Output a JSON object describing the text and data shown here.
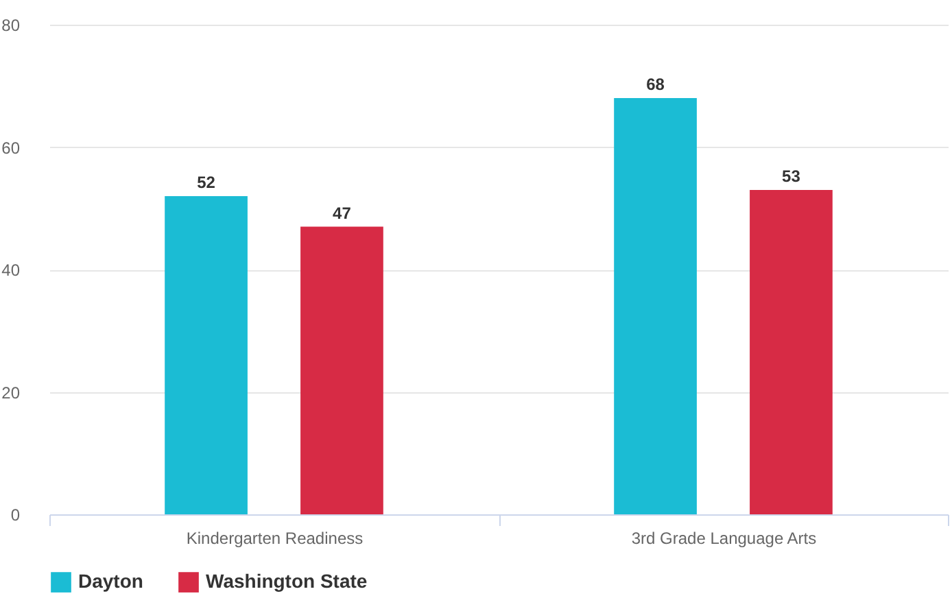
{
  "chart_data": {
    "type": "bar",
    "categories": [
      "Kindergarten Readiness",
      "3rd Grade Language Arts"
    ],
    "series": [
      {
        "name": "Dayton",
        "color": "#1bbcd4",
        "values": [
          52,
          68
        ]
      },
      {
        "name": "Washington State",
        "color": "#d72b45",
        "values": [
          47,
          53
        ]
      }
    ],
    "ylim": [
      0,
      80
    ],
    "yticks": [
      0,
      20,
      40,
      60,
      80
    ],
    "grid": "y",
    "legend": "bottom",
    "data_labels": true
  }
}
